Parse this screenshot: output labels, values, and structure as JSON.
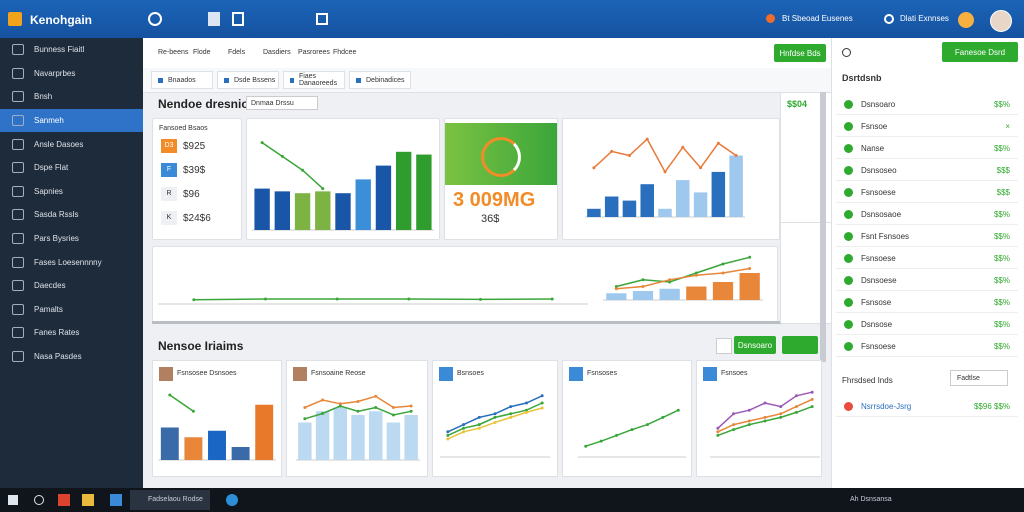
{
  "app": {
    "title": "Kenohgain",
    "top_actions": [
      "Bt Sbeoad Eusenes",
      "Dlati Exnnses"
    ]
  },
  "sidebar": {
    "items": [
      "Bunness Fiaitl",
      "Navarprbes",
      "Bnsh",
      "Sanmeh",
      "Ansle Dasoes",
      "Dspe Flat",
      "Sapnies",
      "Sasda Rssls",
      "Pars Bysries",
      "Fases Loesennnny",
      "Daecdes",
      "Pamalts",
      "Fanes Rates",
      "Nasa Pasdes"
    ],
    "active": 3
  },
  "menu": [
    "Re-beens",
    "Flode",
    "Fdels",
    "Dasdiers",
    "Pasrorees",
    "Fhdcee"
  ],
  "menu_button": "Hnfdse Bds",
  "tabs": [
    "Bnaados",
    "Dsde Bssens",
    "Fiaes Danaoreeds",
    "Debinadices"
  ],
  "overview": {
    "title": "Nendoe dresnio",
    "filter": "Dnmaa Drssu",
    "kpi_title": "Fansoed Bsaos",
    "kpis": [
      {
        "tag": "D3",
        "label": "$925"
      },
      {
        "tag": "F",
        "label": "$39$"
      },
      {
        "tag": "R",
        "label": "$96"
      },
      {
        "tag": "K",
        "label": "$24$6"
      }
    ]
  },
  "gauge": {
    "main": "3 009MG",
    "sub": "36$"
  },
  "side_stat": "$$04",
  "section2": {
    "title": "Nensoe Iriaims",
    "button": "Dsnsoaro"
  },
  "cards": [
    "Fsnsosee Dsnsoes",
    "Fsnsoaine Reose",
    "Bsnsoes",
    "Fsnsoses",
    "Fsnsoes"
  ],
  "right_panel": {
    "button": "Fanesoe Dsrd",
    "title": "Dsrtdsnb",
    "items": [
      {
        "label": "Dsnsoaro",
        "value": "$$%"
      },
      {
        "label": "Fsnsoe",
        "value": "×"
      },
      {
        "label": "Nanse",
        "value": "$$%"
      },
      {
        "label": "Dsnsoseo",
        "value": "$$$"
      },
      {
        "label": "Fsnsoese",
        "value": "$$$"
      },
      {
        "label": "Dsnsosaoe",
        "value": "$$%"
      },
      {
        "label": "Fsnt Fsnsoes",
        "value": "$$%"
      },
      {
        "label": "Fsnsoese",
        "value": "$$%"
      },
      {
        "label": "Dsnsoese",
        "value": "$$%"
      },
      {
        "label": "Fsnsose",
        "value": "$$%"
      },
      {
        "label": "Dsnsose",
        "value": "$$%"
      },
      {
        "label": "Fsnsoese",
        "value": "$$%"
      }
    ]
  },
  "right_footer": {
    "title": "Fhrsdsed Inds",
    "select": "Fadtlse",
    "item": "Nsrrsdoe-Jsrg",
    "value": "$$96 $$%"
  },
  "taskbar": {
    "app": "Fadselaou Rodse",
    "status": "Ah Dsnsansa"
  },
  "charts": [
    {
      "ylim": [
        0,
        100
      ],
      "series": [
        {
          "kind": "bar",
          "colors": [
            "#1a56a8",
            "#1a56a8",
            "#7cb342",
            "#7cb342",
            "#1a56a8",
            "#3b8fd8",
            "#1a56a8",
            "#2e9d2e",
            "#2e9d2e"
          ],
          "values": [
            45,
            42,
            40,
            42,
            40,
            55,
            70,
            85,
            82
          ]
        },
        {
          "kind": "line",
          "color": "#3aa63a",
          "values": [
            95,
            80,
            65,
            45,
            null,
            null,
            null,
            null,
            null
          ]
        }
      ]
    },
    {
      "ylim": [
        0,
        100
      ],
      "series": [
        {
          "kind": "bar",
          "colors": [
            "#2a6fbd",
            "#2a6fbd",
            "#2a6fbd",
            "#2a6fbd",
            "#9ec8ee",
            "#9ec8ee",
            "#9ec8ee",
            "#2a6fbd",
            "#9ec8ee"
          ],
          "values": [
            10,
            25,
            20,
            40,
            10,
            45,
            30,
            55,
            75
          ]
        },
        {
          "kind": "line",
          "color": "#e8793a",
          "values": [
            60,
            80,
            75,
            95,
            55,
            85,
            60,
            90,
            75
          ]
        }
      ]
    },
    {
      "ylim": [
        0,
        100
      ],
      "series": [
        {
          "kind": "line",
          "color": "#3aa63a",
          "values": [
            10,
            12,
            12,
            12,
            11,
            12
          ]
        }
      ]
    },
    {
      "ylim": [
        0,
        100
      ],
      "series": [
        {
          "kind": "bar",
          "colors": [
            "#9ec8ee",
            "#9ec8ee",
            "#9ec8ee",
            "#e8863a",
            "#e8863a",
            "#e8863a"
          ],
          "values": [
            15,
            20,
            25,
            30,
            40,
            60
          ]
        },
        {
          "kind": "line",
          "color": "#3aa63a",
          "values": [
            30,
            45,
            40,
            60,
            80,
            95
          ]
        },
        {
          "kind": "line",
          "color": "#e8863a",
          "values": [
            25,
            30,
            45,
            55,
            60,
            70
          ]
        }
      ]
    },
    {
      "ylim": [
        0,
        100
      ],
      "series": [
        {
          "kind": "bar",
          "colors": [
            "#3a6aa8",
            "#e8863a",
            "#1a66c4",
            "#3a6aa8",
            "#e8792a"
          ],
          "values": [
            50,
            35,
            45,
            20,
            85
          ]
        },
        {
          "kind": "line",
          "color": "#3aa63a",
          "values": [
            100,
            75,
            null,
            null,
            null
          ]
        }
      ]
    },
    {
      "ylim": [
        0,
        100
      ],
      "series": [
        {
          "kind": "bar",
          "colors": [
            "#bcd9f2",
            "#bcd9f2",
            "#bcd9f2",
            "#bcd9f2",
            "#bcd9f2",
            "#bcd9f2",
            "#bcd9f2"
          ],
          "values": [
            50,
            65,
            70,
            60,
            65,
            50,
            60
          ]
        },
        {
          "kind": "line",
          "color": "#e8863a",
          "values": [
            70,
            80,
            75,
            78,
            85,
            70,
            72
          ]
        },
        {
          "kind": "line",
          "color": "#3aa63a",
          "values": [
            55,
            62,
            72,
            65,
            70,
            60,
            65
          ]
        }
      ]
    },
    {
      "ylim": [
        0,
        100
      ],
      "series": [
        {
          "kind": "line",
          "color": "#2a6fbd",
          "values": [
            35,
            45,
            55,
            60,
            70,
            75,
            85
          ]
        },
        {
          "kind": "line",
          "color": "#3aa63a",
          "values": [
            30,
            40,
            45,
            55,
            60,
            65,
            75
          ]
        },
        {
          "kind": "line",
          "color": "#e8c43a",
          "values": [
            25,
            35,
            40,
            48,
            55,
            62,
            68
          ]
        }
      ]
    },
    {
      "ylim": [
        0,
        100
      ],
      "series": [
        {
          "kind": "line",
          "color": "#3aa63a",
          "values": [
            15,
            22,
            30,
            38,
            45,
            55,
            65
          ]
        }
      ]
    },
    {
      "ylim": [
        0,
        100
      ],
      "series": [
        {
          "kind": "line",
          "color": "#9b59b6",
          "values": [
            40,
            60,
            65,
            75,
            70,
            85,
            90
          ]
        },
        {
          "kind": "line",
          "color": "#e8863a",
          "values": [
            35,
            45,
            50,
            55,
            60,
            70,
            80
          ]
        },
        {
          "kind": "line",
          "color": "#3aa63a",
          "values": [
            30,
            38,
            45,
            50,
            55,
            62,
            70
          ]
        }
      ]
    }
  ]
}
